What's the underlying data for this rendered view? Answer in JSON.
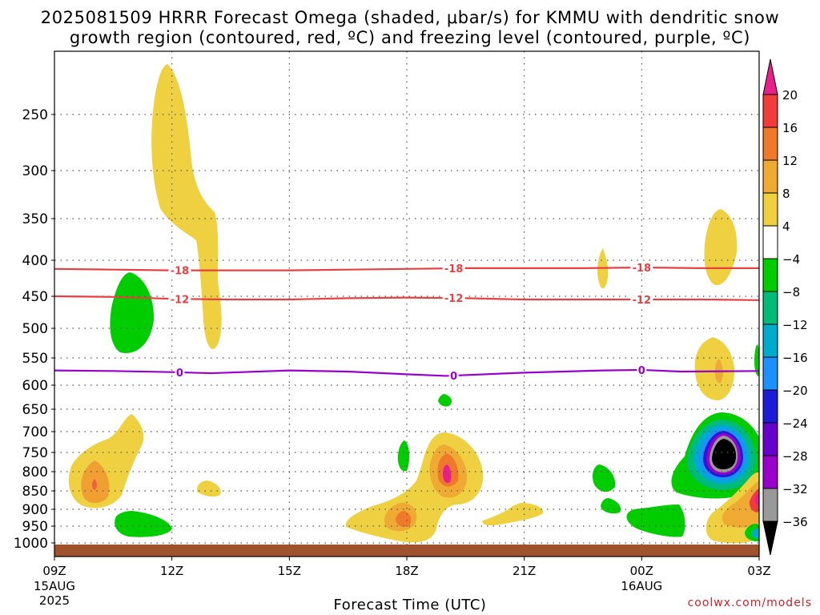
{
  "title_line1": "2025081509 HRRR Forecast Omega (shaded, μbar/s) for KMMU with dendritic snow",
  "title_line2": "growth region (contoured, red, ºC) and freezing level (contoured, purple, ºC)",
  "credit": "coolwx.com/models",
  "chart_data": {
    "type": "heatmap",
    "xlabel": "Forecast Time (UTC)",
    "x_range_hours": [
      9,
      27
    ],
    "x_ticks": [
      {
        "hour": 9,
        "label": "09Z",
        "sub1": "15AUG",
        "sub2": "2025"
      },
      {
        "hour": 12,
        "label": "12Z",
        "sub1": "",
        "sub2": ""
      },
      {
        "hour": 15,
        "label": "15Z",
        "sub1": "",
        "sub2": ""
      },
      {
        "hour": 18,
        "label": "18Z",
        "sub1": "",
        "sub2": ""
      },
      {
        "hour": 21,
        "label": "21Z",
        "sub1": "",
        "sub2": ""
      },
      {
        "hour": 24,
        "label": "00Z",
        "sub1": "16AUG",
        "sub2": ""
      },
      {
        "hour": 27,
        "label": "03Z",
        "sub1": "",
        "sub2": ""
      }
    ],
    "y_axis": "pressure (hPa)",
    "y_ticks": [
      250,
      300,
      350,
      400,
      450,
      500,
      550,
      600,
      650,
      700,
      750,
      800,
      850,
      900,
      950,
      1000
    ],
    "grid": true,
    "colorbar": {
      "units": "μbar/s",
      "levels": [
        "20",
        "16",
        "12",
        "8",
        "4",
        "−4",
        "−8",
        "−12",
        "−16",
        "−20",
        "−24",
        "−28",
        "−32",
        "−36"
      ],
      "colors": [
        "#e8208a",
        "#f23b3b",
        "#f0782a",
        "#eeaa33",
        "#eed040",
        "#ffffff",
        "#00cc00",
        "#00bb77",
        "#00aacc",
        "#1e8fff",
        "#1c1cd6",
        "#6600cc",
        "#9a00cc",
        "#999999",
        "#000000"
      ]
    },
    "contours": [
      {
        "name": "-18",
        "color": "#e84040",
        "level_c": -18,
        "labels": [
          "-18",
          "-18",
          "-18"
        ],
        "points": [
          [
            9.0,
            412
          ],
          [
            10.5,
            413
          ],
          [
            12.0,
            414
          ],
          [
            13.5,
            414
          ],
          [
            15.0,
            414
          ],
          [
            16.5,
            413
          ],
          [
            18.0,
            412
          ],
          [
            19.5,
            411
          ],
          [
            21.0,
            411
          ],
          [
            22.5,
            411
          ],
          [
            24.0,
            410
          ],
          [
            25.5,
            411
          ],
          [
            27.0,
            411
          ]
        ]
      },
      {
        "name": "-12",
        "color": "#e84040",
        "level_c": -12,
        "labels": [
          "-12",
          "-12",
          "-12"
        ],
        "points": [
          [
            9.0,
            450
          ],
          [
            10.5,
            451
          ],
          [
            12.0,
            454
          ],
          [
            13.5,
            455
          ],
          [
            15.0,
            455
          ],
          [
            16.5,
            453
          ],
          [
            18.0,
            452
          ],
          [
            19.5,
            453
          ],
          [
            21.0,
            455
          ],
          [
            22.5,
            455
          ],
          [
            24.0,
            455
          ],
          [
            25.5,
            455
          ],
          [
            27.0,
            456
          ]
        ]
      },
      {
        "name": "0",
        "color": "#9a00cc",
        "level_c": 0,
        "labels": [
          "0",
          "0",
          "0"
        ],
        "points": [
          [
            9.0,
            573
          ],
          [
            10.5,
            574
          ],
          [
            12.0,
            576
          ],
          [
            13.0,
            578
          ],
          [
            15.0,
            573
          ],
          [
            16.5,
            575
          ],
          [
            18.0,
            580
          ],
          [
            19.0,
            583
          ],
          [
            21.0,
            577
          ],
          [
            23.0,
            573
          ],
          [
            24.0,
            572
          ],
          [
            25.0,
            575
          ],
          [
            27.0,
            574
          ]
        ]
      }
    ],
    "shaded_regions": [
      {
        "level": "4 to 8",
        "center": [
          12.4,
          300
        ],
        "note": "upper-level rising motion plume"
      },
      {
        "level": "-4 to -8",
        "center": [
          11.0,
          470
        ]
      },
      {
        "level": "4 to 8",
        "center": [
          10.2,
          800
        ]
      },
      {
        "level": "8 to 12",
        "center": [
          9.9,
          830
        ]
      },
      {
        "level": "-4 to -8",
        "center": [
          11.2,
          945
        ]
      },
      {
        "level": "4 to 8",
        "center": [
          18.5,
          880
        ]
      },
      {
        "level": "8 to 12",
        "center": [
          19.0,
          800
        ]
      },
      {
        "level": "16 to 20",
        "center": [
          19.0,
          800
        ]
      },
      {
        "level": "-4 to -8",
        "center": [
          26.0,
          760
        ]
      },
      {
        "level": "-32 to -36",
        "center": [
          26.0,
          755
        ]
      },
      {
        "level": "4 to 8",
        "center": [
          26.0,
          380
        ]
      }
    ],
    "terrain_color": "#a0522d",
    "surface_pressure": 1012
  }
}
